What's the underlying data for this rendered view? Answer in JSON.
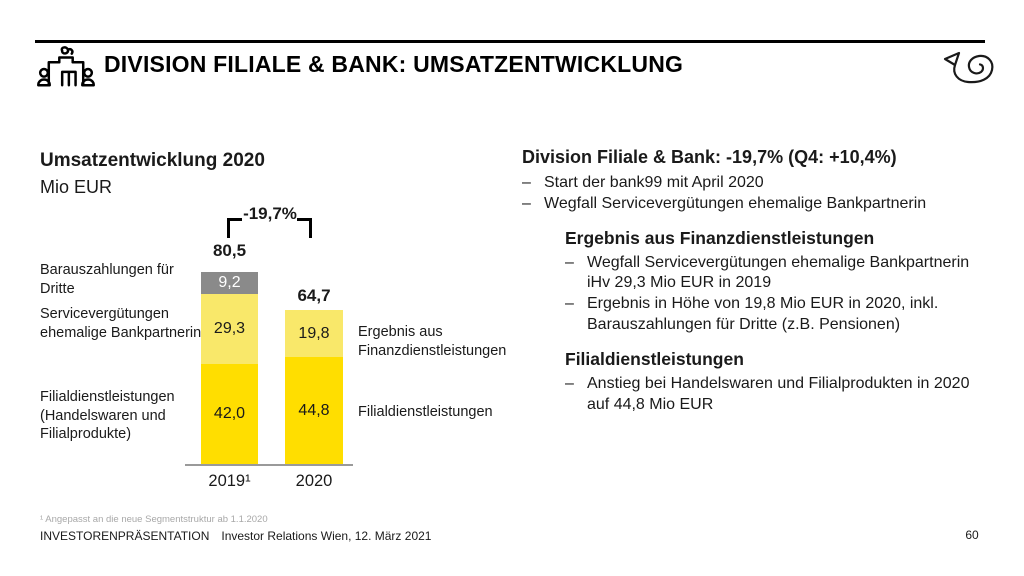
{
  "header": {
    "title": "DIVISION FILIALE & BANK: UMSATZENTWICKLUNG"
  },
  "chart_data": {
    "type": "bar",
    "stacked": true,
    "title": "Umsatzentwicklung 2020",
    "ylabel": "Mio EUR",
    "categories": [
      "2019¹",
      "2020"
    ],
    "series": [
      {
        "name": "Barauszahlungen für Dritte",
        "values": [
          9.2,
          null
        ],
        "display": [
          "9,2",
          ""
        ],
        "color": "#8a8a8a",
        "text_color": "#ffffff"
      },
      {
        "name": "Servicevergütungen ehemalige Bankpartnerin / Ergebnis aus Finanzdienstleistungen",
        "values": [
          29.3,
          19.8
        ],
        "display": [
          "29,3",
          "19,8"
        ],
        "color": "#f9e86a",
        "text_color": "#1a1a1a"
      },
      {
        "name": "Filialdienstleistungen (Handelswaren und Filialprodukte)",
        "values": [
          42.0,
          44.8
        ],
        "display": [
          "42,0",
          "44,8"
        ],
        "color": "#ffde00",
        "text_color": "#1a1a1a"
      }
    ],
    "totals": [
      80.5,
      64.7
    ],
    "totals_display": [
      "80,5",
      "64,7"
    ],
    "change_label": "-19,7%",
    "grid": false,
    "legend_position": "annotations-left-and-right",
    "left_annotations": [
      "Barauszahlungen für Dritte",
      "Servicevergütungen ehemalige Bankpartnerin",
      "Filialdienstleistungen (Handelswaren und Filialprodukte)"
    ],
    "right_annotations": [
      "Ergebnis aus Finanzdienstleistungen",
      "Filialdienstleistungen"
    ]
  },
  "panel": {
    "dash": "–",
    "heading": "Division Filiale & Bank: -19,7% (Q4: +10,4%)",
    "bullets": [
      "Start der bank99 mit April 2020",
      "Wegfall Servicevergütungen ehemalige Bankpartnerin"
    ],
    "sections": [
      {
        "heading": "Ergebnis aus Finanzdienstleistungen",
        "bullets": [
          "Wegfall Servicevergütungen ehemalige Bankpartnerin iHv 29,3 Mio EUR in 2019",
          "Ergebnis in Höhe von 19,8 Mio EUR in 2020, inkl. Barauszahlungen für Dritte (z.B. Pensionen)"
        ]
      },
      {
        "heading": "Filialdienstleistungen",
        "bullets": [
          "Anstieg bei Handelswaren und Filialprodukten in 2020 auf 44,8 Mio EUR"
        ]
      }
    ]
  },
  "footer": {
    "footnote": "¹ Angepasst an die neue Segmentstruktur ab 1.1.2020",
    "presentation": "INVESTORENPRÄSENTATION",
    "details": "Investor Relations Wien, 12. März 2021",
    "page": "60"
  },
  "colors": {
    "brand_yellow": "#ffde00",
    "light_yellow": "#f9e86a",
    "segment_gray": "#8a8a8a",
    "axis_gray": "#9a9a9a"
  }
}
